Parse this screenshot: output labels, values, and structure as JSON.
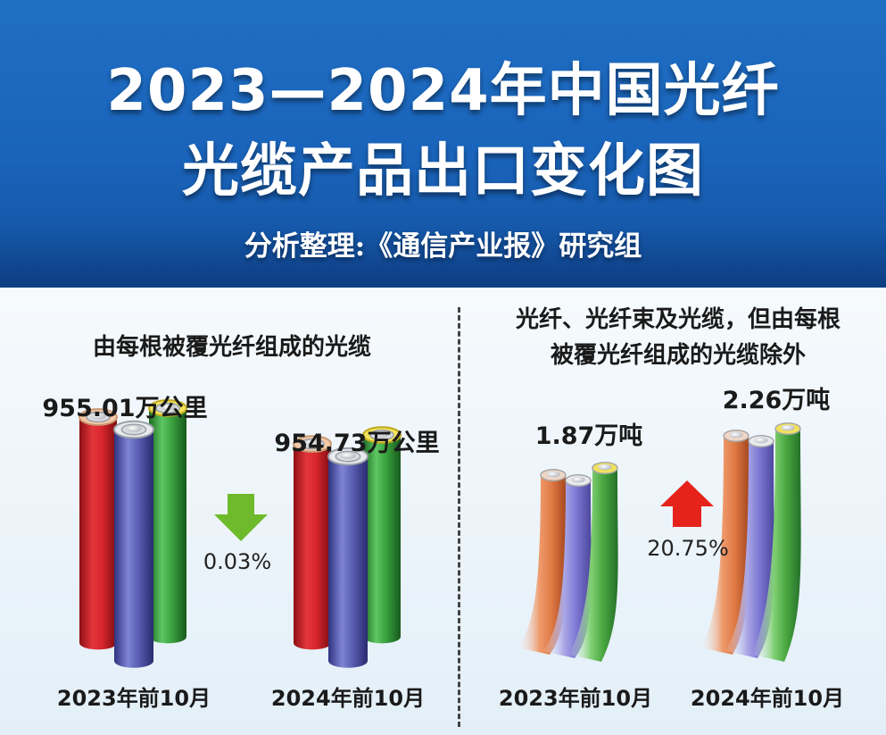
{
  "header": {
    "title_line_1": "2023—2024年中国光纤",
    "title_line_2": "光缆产品出口变化图",
    "source": "分析整理:《通信产业报》研究组"
  },
  "colors": {
    "header_blue": "#1a64bb",
    "cable_red": "#d8272d",
    "cable_blue": "#5b5fb6",
    "cable_green": "#3aa33f",
    "cable_orange": "#e07a45",
    "arrow_down": "#6fba2c",
    "arrow_up": "#e5231b"
  },
  "chart_data": [
    {
      "type": "bar",
      "title": "由每根被覆光纤组成的光缆",
      "categories": [
        "2023年前10月",
        "2024年前10月"
      ],
      "values": [
        955.01,
        954.73
      ],
      "value_labels": [
        "955.01万公里",
        "954.73万公里"
      ],
      "unit": "万公里",
      "change": {
        "direction": "down",
        "label": "0.03%",
        "icon": "arrow-down-icon"
      }
    },
    {
      "type": "bar",
      "title": "光纤、光纤束及光缆，但由每根被覆光纤组成的光缆除外",
      "title_lines": [
        "光纤、光纤束及光缆，但由每根",
        "被覆光纤组成的光缆除外"
      ],
      "categories": [
        "2023年前10月",
        "2024年前10月"
      ],
      "values": [
        1.87,
        2.26
      ],
      "value_labels": [
        "1.87万吨",
        "2.26万吨"
      ],
      "unit": "万吨",
      "change": {
        "direction": "up",
        "label": "20.75%",
        "icon": "arrow-up-icon"
      }
    }
  ]
}
